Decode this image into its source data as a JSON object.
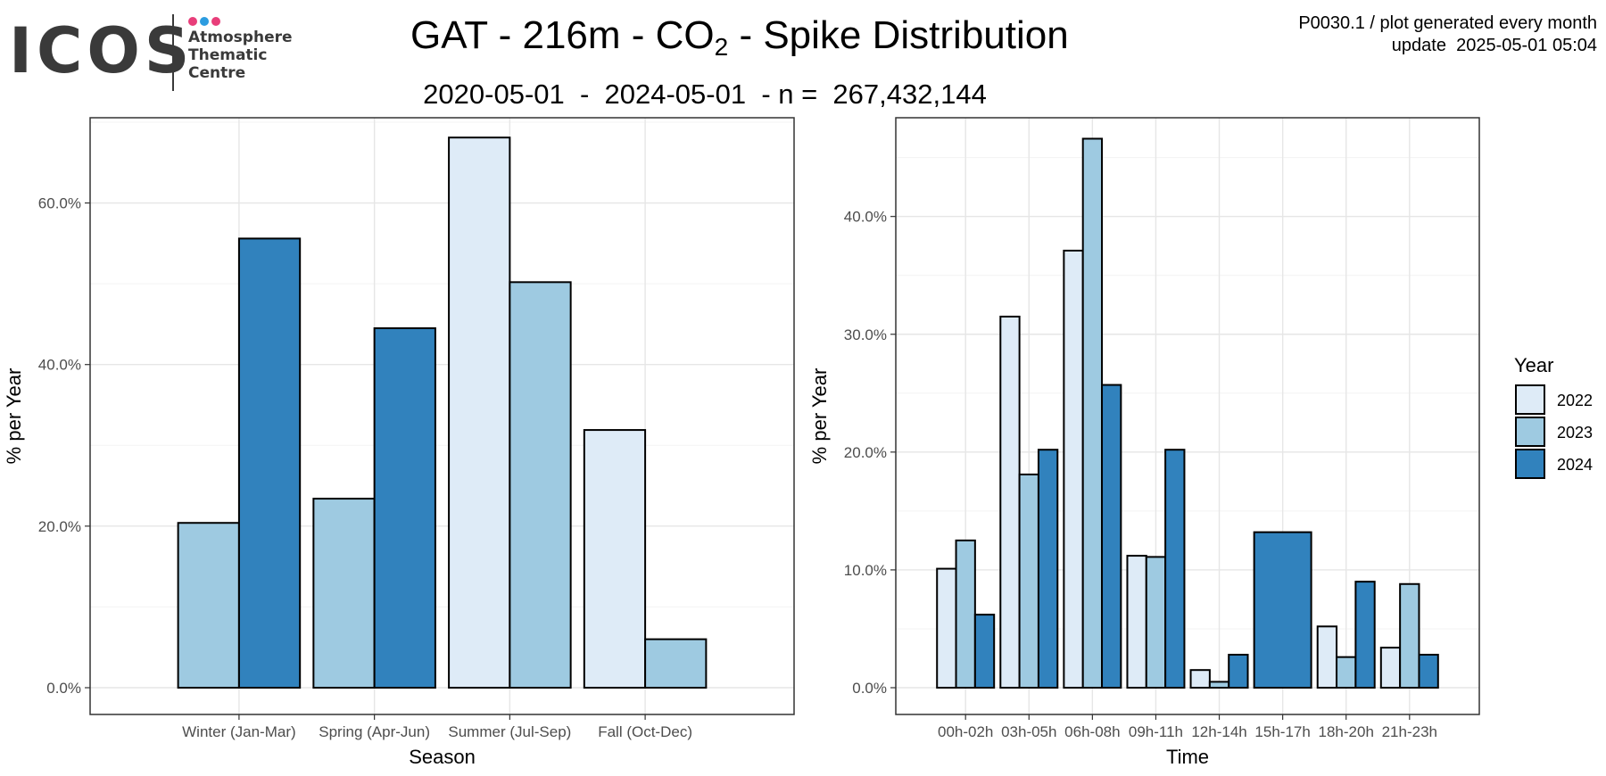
{
  "header": {
    "logo_word": "ICOS",
    "logo_lines": [
      "Atmosphere",
      "Thematic",
      "Centre"
    ],
    "title_prefix": "GAT - 216m - CO",
    "title_sub": "2",
    "title_suffix": " - Spike Distribution",
    "subtitle": "2020-05-01  -  2024-05-01  - n =  267,432,144",
    "meta_line1": "P0030.1 / plot generated every month",
    "meta_line2": "update  2025-05-01 05:04"
  },
  "logo_colors": [
    "#e83e7a",
    "#2c9ce0",
    "#e83e7a"
  ],
  "legend": {
    "title": "Year",
    "items": [
      {
        "label": "2022",
        "color": "#deebf7"
      },
      {
        "label": "2023",
        "color": "#9ecae1"
      },
      {
        "label": "2024",
        "color": "#3182bd"
      }
    ]
  },
  "chart_data": [
    {
      "type": "bar",
      "xlabel": "Season",
      "ylabel": "% per Year",
      "ylim": [
        0,
        70
      ],
      "yticks": [
        0,
        20,
        40,
        60
      ],
      "tick_format": "percent_1dp",
      "grid": true,
      "categories": [
        "Winter (Jan-Mar)",
        "Spring (Apr-Jun)",
        "Summer (Jul-Sep)",
        "Fall (Oct-Dec)"
      ],
      "series": [
        {
          "name": "2022",
          "color": "#deebf7",
          "values": [
            null,
            null,
            68.1,
            31.9
          ]
        },
        {
          "name": "2023",
          "color": "#9ecae1",
          "values": [
            20.4,
            23.4,
            50.2,
            6.0
          ]
        },
        {
          "name": "2024",
          "color": "#3182bd",
          "values": [
            55.6,
            44.5,
            null,
            null
          ]
        }
      ]
    },
    {
      "type": "bar",
      "xlabel": "Time",
      "ylabel": "% per Year",
      "ylim": [
        0,
        48
      ],
      "yticks": [
        0,
        10,
        20,
        30,
        40
      ],
      "tick_format": "percent_1dp",
      "grid": true,
      "categories": [
        "00h-02h",
        "03h-05h",
        "06h-08h",
        "09h-11h",
        "12h-14h",
        "15h-17h",
        "18h-20h",
        "21h-23h"
      ],
      "series": [
        {
          "name": "2022",
          "color": "#deebf7",
          "values": [
            10.1,
            31.5,
            37.1,
            11.2,
            1.5,
            null,
            5.2,
            3.4
          ]
        },
        {
          "name": "2023",
          "color": "#9ecae1",
          "values": [
            12.5,
            18.1,
            46.6,
            11.1,
            0.5,
            null,
            2.6,
            8.8
          ]
        },
        {
          "name": "2024",
          "color": "#3182bd",
          "values": [
            6.2,
            20.2,
            25.7,
            20.2,
            2.8,
            13.2,
            9.0,
            2.8
          ]
        }
      ]
    }
  ]
}
